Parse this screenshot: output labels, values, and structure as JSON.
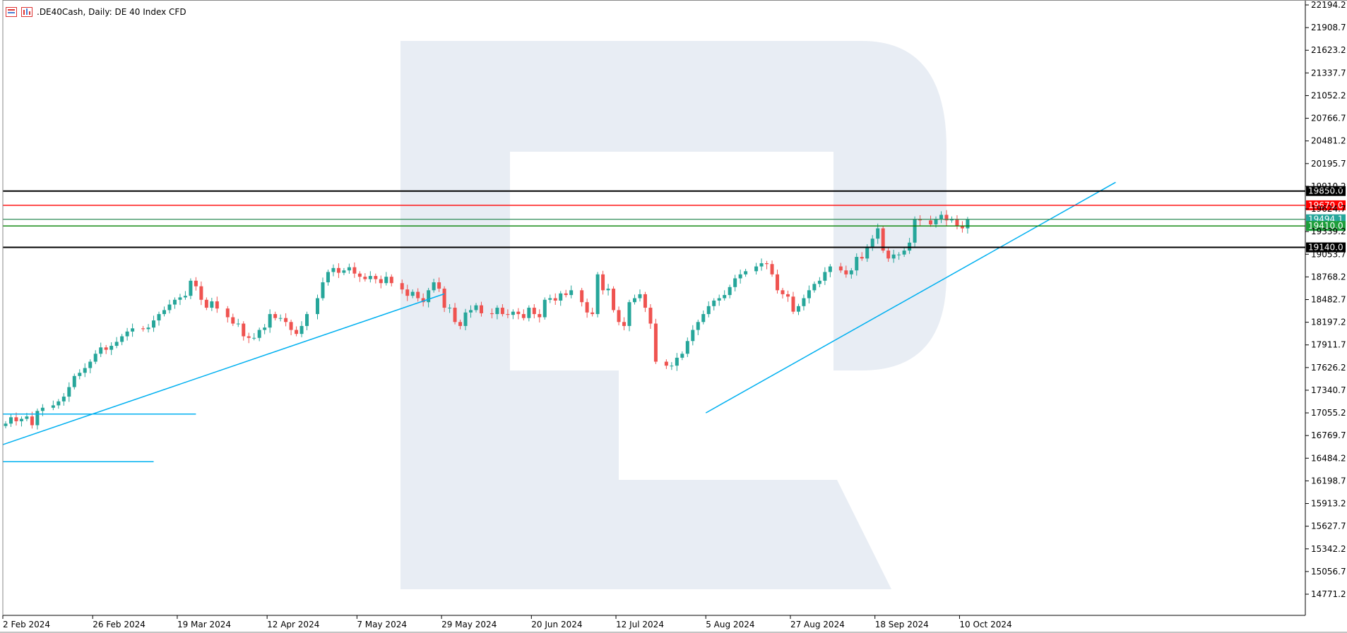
{
  "header": {
    "symbol_title": ".DE40Cash, Daily:  DE 40 Index CFD",
    "icon_1": "chart-bars-icon",
    "icon_2": "indicator-icon"
  },
  "chart_data": {
    "type": "candlestick",
    "title": ".DE40Cash, Daily:  DE 40 Index CFD",
    "xlabel": "",
    "ylabel": "",
    "ylim": [
      14486.0,
      22194.2
    ],
    "grid": false,
    "y_ticks": [
      "22194.2",
      "21908.7",
      "21623.2",
      "21337.7",
      "21052.2",
      "20766.7",
      "20481.2",
      "20195.7",
      "19910.2",
      "19624.7",
      "19339.2",
      "19053.7",
      "18768.2",
      "18482.7",
      "18197.2",
      "17911.7",
      "17626.2",
      "17340.7",
      "17055.2",
      "16769.7",
      "16484.2",
      "16198.7",
      "15913.2",
      "15627.7",
      "15342.2",
      "15056.7",
      "14771.2"
    ],
    "y_tick_values": [
      22194.2,
      21908.7,
      21623.2,
      21337.7,
      21052.2,
      20766.7,
      20481.2,
      20195.7,
      19910.2,
      19624.7,
      19339.2,
      19053.7,
      18768.2,
      18482.7,
      18197.2,
      17911.7,
      17626.2,
      17340.7,
      17055.2,
      16769.7,
      16484.2,
      16198.7,
      15913.2,
      15627.7,
      15342.2,
      15056.7,
      14771.2
    ],
    "x_ticks": [
      {
        "label": "2 Feb 2024",
        "index": 0
      },
      {
        "label": "26 Feb 2024",
        "index": 17
      },
      {
        "label": "19 Mar 2024",
        "index": 33
      },
      {
        "label": "12 Apr 2024",
        "index": 50
      },
      {
        "label": "7 May 2024",
        "index": 67
      },
      {
        "label": "29 May 2024",
        "index": 83
      },
      {
        "label": "20 Jun 2024",
        "index": 100
      },
      {
        "label": "12 Jul 2024",
        "index": 116
      },
      {
        "label": "5 Aug 2024",
        "index": 133
      },
      {
        "label": "27 Aug 2024",
        "index": 149
      },
      {
        "label": "18 Sep 2024",
        "index": 165
      },
      {
        "label": "10 Oct 2024",
        "index": 181
      }
    ],
    "visible_bars": 240,
    "closes": [
      16920,
      17000,
      16950,
      16980,
      17010,
      16900,
      17080,
      17120,
      17150,
      17200,
      17260,
      17380,
      17520,
      17560,
      17620,
      17700,
      17800,
      17880,
      17850,
      17900,
      17950,
      18020,
      18080,
      18120,
      18110,
      18130,
      18220,
      18300,
      18350,
      18420,
      18480,
      18510,
      18530,
      18720,
      18650,
      18480,
      18380,
      18460,
      18370,
      18260,
      18180,
      18180,
      18020,
      18000,
      18000,
      18100,
      18130,
      18300,
      18250,
      18250,
      18200,
      18100,
      18050,
      18150,
      18300,
      18500,
      18700,
      18830,
      18880,
      18820,
      18850,
      18890,
      18810,
      18770,
      18740,
      18780,
      18740,
      18690,
      18770,
      18690,
      18610,
      18530,
      18580,
      18500,
      18450,
      18600,
      18700,
      18620,
      18380,
      18380,
      18200,
      18150,
      18320,
      18350,
      18410,
      18310,
      18300,
      18380,
      18300,
      18290,
      18330,
      18300,
      18250,
      18380,
      18300,
      18260,
      18480,
      18500,
      18470,
      18560,
      18540,
      18600,
      18450,
      18320,
      18300,
      18800,
      18600,
      18620,
      18350,
      18200,
      18150,
      18450,
      18500,
      18550,
      18380,
      18180,
      17700,
      17650,
      17650,
      17750,
      17800,
      17960,
      18100,
      18200,
      18300,
      18400,
      18470,
      18500,
      18540,
      18640,
      18750,
      18800,
      18840,
      18900,
      18940,
      18930,
      18800,
      18600,
      18550,
      18520,
      18330,
      18400,
      18500,
      18600,
      18680,
      18720,
      18830,
      18900,
      18850,
      18800,
      18850,
      19020,
      19000,
      19150,
      19250,
      19380,
      19100,
      19000,
      19050,
      19050,
      19100,
      19200,
      19500,
      19480,
      19430,
      19500,
      19550,
      19480,
      19500,
      19410,
      19380,
      19494.1
    ]
  },
  "levels": [
    {
      "label": "19850.0",
      "value": 19850.0,
      "color": "#000000",
      "text_color": "#ffffff",
      "badge_bg": "#000000"
    },
    {
      "label": "19670.0",
      "value": 19670.0,
      "color": "#ff0000",
      "text_color": "#ffffff",
      "badge_bg": "#ff0000"
    },
    {
      "label": "19494.1",
      "value": 19494.1,
      "color": "#2e8b57",
      "text_color": "#ffffff",
      "badge_bg": "#26a69a"
    },
    {
      "label": "19410.0",
      "value": 19410.0,
      "color": "#008000",
      "text_color": "#ffffff",
      "badge_bg": "#1e9e3b"
    },
    {
      "label": "19140.0",
      "value": 19140.0,
      "color": "#000000",
      "text_color": "#ffffff",
      "badge_bg": "#000000"
    }
  ],
  "colors": {
    "bull": "#26a69a",
    "bear": "#ef5350",
    "trendline": "#00b0f0",
    "axis": "#000000",
    "watermark": "#e8edf4"
  }
}
